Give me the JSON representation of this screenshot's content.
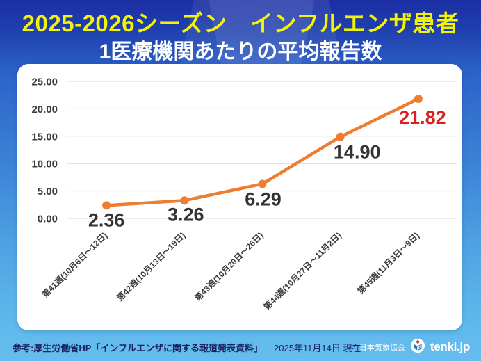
{
  "header": {
    "title": "2025-2026シーズン　インフルエンザ患者",
    "subtitle": "1医療機関あたりの平均報告数"
  },
  "chart_data": {
    "type": "line",
    "title": "1医療機関あたりの平均報告数",
    "categories": [
      "第41週(10月6日～12日)",
      "第42週(10月13日～19日)",
      "第43週(10月20日～26日)",
      "第44週(10月27日～11月2日)",
      "第45週(11月3日～9日)"
    ],
    "values": [
      2.36,
      3.26,
      6.29,
      14.9,
      21.82
    ],
    "value_labels": [
      "2.36",
      "3.26",
      "6.29",
      "14.90",
      "21.82"
    ],
    "highlight_last_label": true,
    "y_ticks": [
      "25.00",
      "20.00",
      "15.00",
      "10.00",
      "5.00",
      "0.00"
    ],
    "ylim": [
      0,
      25
    ],
    "xlabel": "",
    "ylabel": "",
    "grid": true,
    "legend": "none"
  },
  "colors": {
    "title_yellow": "#F4F400",
    "line_orange": "#ED7D31",
    "marker_orange": "#ED7D31",
    "value_label_dark": "#333333",
    "value_label_red": "#DC1E1E",
    "axis_text": "#3C3C3C",
    "gridline": "#D9D9D9",
    "footer_navy": "#1A2462",
    "bg_top_blue": "#1B2EA3",
    "bg_bottom_blue": "#66BDEF",
    "card_white": "#FFFFFF"
  },
  "icons": {
    "brand_logo": "jwa-cube-logo"
  },
  "footer": {
    "source": "参考:厚生労働省HP「インフルエンザに関する報道発表資料」",
    "date": "2025年11月14日 現在",
    "org": "日本気象協会",
    "brand": "tenki.jp"
  }
}
